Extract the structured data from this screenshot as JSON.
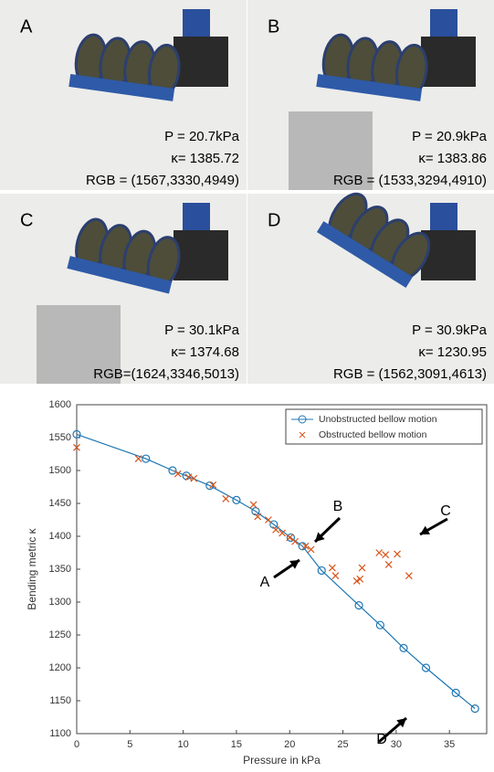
{
  "panels": [
    {
      "label": "A",
      "pressure": "P = 20.7kPa",
      "kappa": "κ= 1385.72",
      "rgb": "RGB = (1567,3330,4949)"
    },
    {
      "label": "B",
      "pressure": "P = 20.9kPa",
      "kappa": "κ= 1383.86",
      "rgb": "RGB = (1533,3294,4910)"
    },
    {
      "label": "C",
      "pressure": "P = 30.1kPa",
      "kappa": "κ= 1374.68",
      "rgb": "RGB=(1624,3346,5013)"
    },
    {
      "label": "D",
      "pressure": "P = 30.9kPa",
      "kappa": "κ= 1230.95",
      "rgb": "RGB = (1562,3091,4613)"
    }
  ],
  "chart_data": {
    "type": "scatter-line",
    "x_label": "Pressure in kPa",
    "y_label": "Bending metric κ",
    "xlim": [
      0,
      38.5
    ],
    "ylim": [
      1100,
      1600
    ],
    "xticks": [
      0,
      5,
      10,
      15,
      20,
      25,
      30,
      35
    ],
    "yticks": [
      1100,
      1150,
      1200,
      1250,
      1300,
      1350,
      1400,
      1450,
      1500,
      1550,
      1600
    ],
    "legend": "upper right",
    "annotations": [
      "A",
      "B",
      "C",
      "D"
    ],
    "series": [
      {
        "name": "Unobstructed bellow motion",
        "color": "#1f77b4",
        "marker": "circle",
        "line": true,
        "x": [
          0,
          6.5,
          9,
          10.3,
          12.5,
          15,
          16.8,
          18.5,
          20.1,
          21.2,
          23,
          26.5,
          28.5,
          30.7,
          32.8,
          35.6,
          37.4
        ],
        "values": [
          1555,
          1518,
          1500,
          1492,
          1477,
          1455,
          1438,
          1418,
          1398,
          1385,
          1348,
          1295,
          1265,
          1230,
          1200,
          1162,
          1138
        ]
      },
      {
        "name": "Obstructed bellow motion",
        "color": "#d9541a",
        "marker": "x",
        "line": false,
        "x": [
          0,
          5.8,
          9.5,
          10.5,
          11,
          12.8,
          14,
          16.6,
          17,
          18,
          18.7,
          19.3,
          20,
          20.5,
          21.5,
          22,
          24,
          24.3,
          26.3,
          26.6,
          26.8,
          28.4,
          29,
          29.3,
          30.1,
          31.2
        ],
        "values": [
          1535,
          1518,
          1495,
          1490,
          1488,
          1478,
          1457,
          1448,
          1430,
          1425,
          1410,
          1405,
          1398,
          1392,
          1385,
          1380,
          1352,
          1340,
          1332,
          1335,
          1352,
          1375,
          1372,
          1357,
          1373,
          1340
        ]
      }
    ]
  }
}
